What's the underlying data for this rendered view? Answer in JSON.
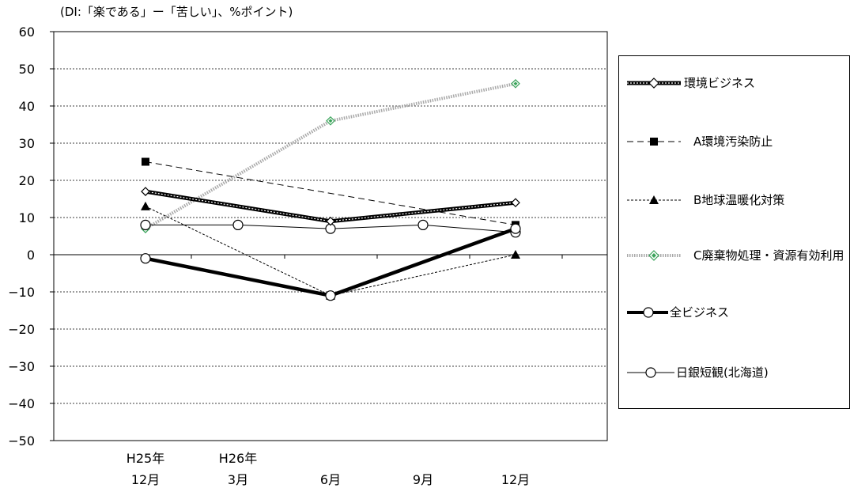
{
  "chart_data": {
    "type": "line",
    "note": "(DI:「楽である」ー「苦しい」、%ポイント)",
    "x_ticks": [
      {
        "top": "H25年",
        "bottom": "12月"
      },
      {
        "top": "H26年",
        "bottom": "3月"
      },
      {
        "top": "",
        "bottom": "6月"
      },
      {
        "top": "",
        "bottom": "9月"
      },
      {
        "top": "",
        "bottom": "12月"
      }
    ],
    "ylim": [
      -50,
      60
    ],
    "yticks": [
      -50,
      -40,
      -30,
      -20,
      -10,
      0,
      10,
      20,
      30,
      40,
      50,
      60
    ],
    "ytick_labels": [
      "−50",
      "−40",
      "−30",
      "−20",
      "−10",
      "0",
      "10",
      "20",
      "30",
      "40",
      "50",
      "60"
    ],
    "grid": true,
    "legend_position": "right",
    "series": [
      {
        "name": "環境ビジネス",
        "style": "env",
        "color": "#000000",
        "points": [
          [
            0,
            17
          ],
          [
            2,
            9
          ],
          [
            4,
            14
          ]
        ]
      },
      {
        "name": "A環境汚染防止",
        "style": "a",
        "color": "#000000",
        "points": [
          [
            0,
            25
          ],
          [
            4,
            8
          ]
        ]
      },
      {
        "name": "B地球温暖化対策",
        "style": "b",
        "color": "#000000",
        "points": [
          [
            0,
            13
          ],
          [
            2,
            -11
          ],
          [
            4,
            0
          ]
        ]
      },
      {
        "name": "C廃棄物処理・資源有効利用",
        "style": "c",
        "color": "#9a9a9a",
        "marker_color": "#3aa35a",
        "points": [
          [
            0,
            7
          ],
          [
            2,
            36
          ],
          [
            4,
            46
          ]
        ]
      },
      {
        "name": "全ビジネス",
        "style": "all",
        "color": "#000000",
        "points": [
          [
            0,
            -1
          ],
          [
            2,
            -11
          ],
          [
            4,
            7
          ]
        ]
      },
      {
        "name": "日銀短観(北海道)",
        "style": "boj",
        "color": "#000000",
        "points": [
          [
            0,
            8
          ],
          [
            1,
            8
          ],
          [
            2,
            7
          ],
          [
            3,
            8
          ],
          [
            4,
            6
          ]
        ]
      }
    ]
  }
}
